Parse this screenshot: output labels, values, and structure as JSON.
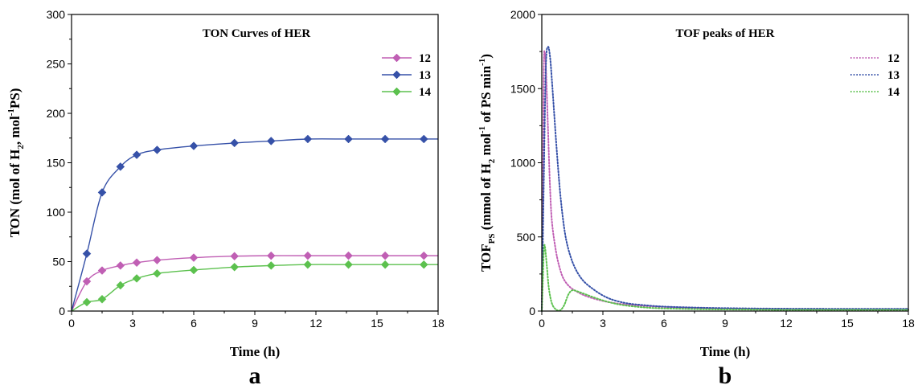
{
  "chart_data": [
    {
      "type": "line",
      "title": "TON Curves of HER",
      "panel_label": "a",
      "xlabel": "Time (h)",
      "ylabel_parts": [
        "TON (mol of H",
        "2",
        ", mol",
        "-1",
        "PS)"
      ],
      "xlim": [
        0,
        18
      ],
      "ylim": [
        0,
        300
      ],
      "xticks": [
        0,
        3,
        6,
        9,
        12,
        15,
        18
      ],
      "yticks": [
        0,
        50,
        100,
        150,
        200,
        250,
        300
      ],
      "legend_position": "top-right",
      "series": [
        {
          "name": "12",
          "color": "#c05fb4",
          "marker": "diamond",
          "x": [
            0,
            0.75,
            1.5,
            2.4,
            3.2,
            4.2,
            6.0,
            8.0,
            9.8,
            11.6,
            13.6,
            15.4,
            17.3,
            18
          ],
          "y": [
            0,
            30,
            41,
            46,
            49,
            51.5,
            54,
            55.5,
            56,
            56,
            56,
            56,
            56,
            56
          ],
          "marker_x": [
            0.75,
            1.5,
            2.4,
            3.2,
            4.2,
            6.0,
            8.0,
            9.8,
            11.6,
            13.6,
            15.4,
            17.3
          ]
        },
        {
          "name": "13",
          "color": "#3651a8",
          "marker": "diamond",
          "x": [
            0,
            0.75,
            1.5,
            2.4,
            3.2,
            4.2,
            6.0,
            8.0,
            9.8,
            11.6,
            13.6,
            15.4,
            17.3,
            18
          ],
          "y": [
            0,
            58,
            120,
            146,
            158,
            163,
            167,
            170,
            172,
            174,
            174,
            174,
            174,
            174
          ],
          "marker_x": [
            0.75,
            1.5,
            2.4,
            3.2,
            4.2,
            6.0,
            8.0,
            9.8,
            11.6,
            13.6,
            15.4,
            17.3
          ]
        },
        {
          "name": "14",
          "color": "#5cc14e",
          "marker": "diamond",
          "x": [
            0,
            0.75,
            1.5,
            2.4,
            3.2,
            4.2,
            6.0,
            8.0,
            9.8,
            11.6,
            13.6,
            15.4,
            17.3,
            18
          ],
          "y": [
            0,
            9,
            12,
            26,
            33,
            38,
            41.5,
            44.5,
            46,
            47,
            47,
            47,
            47,
            47
          ],
          "marker_x": [
            0.75,
            1.5,
            2.4,
            3.2,
            4.2,
            6.0,
            8.0,
            9.8,
            11.6,
            13.6,
            15.4,
            17.3
          ]
        }
      ]
    },
    {
      "type": "line",
      "title": "TOF peaks of HER",
      "panel_label": "b",
      "xlabel": "Time (h)",
      "ylabel_parts": [
        "TOF",
        "PS",
        " (mmol of H",
        "2",
        " mol",
        "-1",
        " of PS min",
        "-1",
        ")"
      ],
      "xlim": [
        0,
        18
      ],
      "ylim": [
        0,
        2000
      ],
      "xticks": [
        0,
        3,
        6,
        9,
        12,
        15,
        18
      ],
      "yticks": [
        0,
        500,
        1000,
        1500,
        2000
      ],
      "legend_position": "top-right",
      "series": [
        {
          "name": "12",
          "color": "#c05fb4",
          "style": "dotted",
          "x": [
            0,
            0.05,
            0.1,
            0.15,
            0.2,
            0.3,
            0.4,
            0.5,
            0.7,
            0.9,
            1.1,
            1.4,
            1.8,
            2.2,
            2.8,
            3.5,
            4.5,
            6,
            8,
            10,
            12,
            15,
            18
          ],
          "y": [
            0,
            800,
            1650,
            1740,
            1650,
            1250,
            850,
            600,
            400,
            280,
            210,
            160,
            125,
            100,
            75,
            55,
            40,
            28,
            20,
            15,
            12,
            10,
            10
          ]
        },
        {
          "name": "13",
          "color": "#3651a8",
          "style": "dotted",
          "x": [
            0,
            0.1,
            0.2,
            0.3,
            0.4,
            0.5,
            0.7,
            0.9,
            1.1,
            1.3,
            1.6,
            2.0,
            2.5,
            3.0,
            3.5,
            4.2,
            5,
            6,
            8,
            10,
            12,
            15,
            18
          ],
          "y": [
            0,
            900,
            1650,
            1780,
            1720,
            1550,
            1150,
            800,
            560,
            420,
            300,
            210,
            150,
            105,
            75,
            52,
            40,
            30,
            22,
            18,
            16,
            15,
            15
          ]
        },
        {
          "name": "14",
          "color": "#5cc14e",
          "style": "dotted",
          "x": [
            0,
            0.05,
            0.1,
            0.15,
            0.25,
            0.35,
            0.5,
            0.7,
            0.9,
            1.1,
            1.3,
            1.5,
            1.8,
            2.2,
            2.7,
            3.3,
            4,
            5,
            6,
            8,
            10,
            12,
            15,
            18
          ],
          "y": [
            0,
            200,
            400,
            440,
            300,
            150,
            50,
            10,
            5,
            40,
            110,
            140,
            130,
            110,
            85,
            60,
            40,
            25,
            18,
            12,
            10,
            8,
            8,
            8
          ]
        }
      ]
    }
  ]
}
